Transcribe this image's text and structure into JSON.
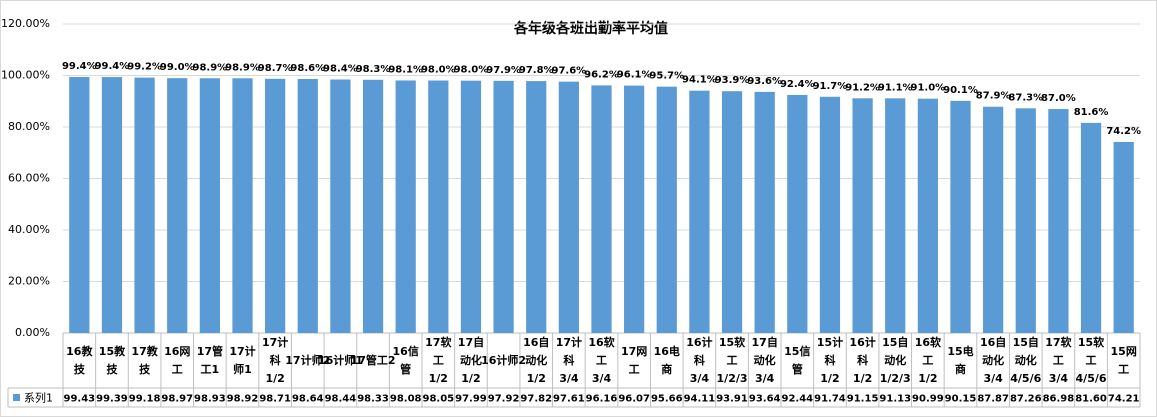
{
  "chart_data": {
    "type": "bar",
    "title": "各年级各班出勤率平均值",
    "categories": [
      [
        "16教",
        "技"
      ],
      [
        "15教",
        "技"
      ],
      [
        "17教",
        "技"
      ],
      [
        "16网",
        "工"
      ],
      [
        "17管",
        "工1"
      ],
      [
        "17计",
        "师1"
      ],
      [
        "17计",
        "科",
        "1/2"
      ],
      [
        "17计师2"
      ],
      [
        "16计师1"
      ],
      [
        "17管工2"
      ],
      [
        "16信",
        "管"
      ],
      [
        "17软",
        "工",
        "1/2"
      ],
      [
        "17自",
        "动化",
        "1/2"
      ],
      [
        "16计师2"
      ],
      [
        "16自",
        "动化",
        "1/2"
      ],
      [
        "17计",
        "科",
        "3/4"
      ],
      [
        "16软",
        "工",
        "3/4"
      ],
      [
        "17网",
        "工"
      ],
      [
        "16电",
        "商"
      ],
      [
        "16计",
        "科",
        "3/4"
      ],
      [
        "15软",
        "工",
        "1/2/3"
      ],
      [
        "17自",
        "动化",
        "3/4"
      ],
      [
        "15信",
        "管"
      ],
      [
        "15计",
        "科",
        "1/2"
      ],
      [
        "16计",
        "科",
        "1/2"
      ],
      [
        "15自",
        "动化",
        "1/2/3"
      ],
      [
        "16软",
        "工",
        "1/2"
      ],
      [
        "15电",
        "商"
      ],
      [
        "16自",
        "动化",
        "3/4"
      ],
      [
        "15自",
        "动化",
        "4/5/6"
      ],
      [
        "17软",
        "工",
        "3/4"
      ],
      [
        "15软",
        "工",
        "4/5/6"
      ],
      [
        "15网",
        "工"
      ]
    ],
    "series": [
      {
        "name": "系列1",
        "color": "#5b9bd5",
        "values": [
          99.43,
          99.39,
          99.18,
          98.97,
          98.93,
          98.92,
          98.71,
          98.64,
          98.44,
          98.33,
          98.08,
          98.05,
          97.99,
          97.92,
          97.82,
          97.61,
          96.16,
          96.07,
          95.66,
          94.11,
          93.91,
          93.64,
          92.44,
          91.74,
          91.15,
          91.13,
          90.99,
          90.15,
          87.87,
          87.26,
          86.98,
          81.6,
          74.21
        ],
        "value_labels": [
          "99.4%",
          "99.4%",
          "99.2%",
          "99.0%",
          "98.9%",
          "98.9%",
          "98.7%",
          "98.6%",
          "98.4%",
          "98.3%",
          "98.1%",
          "98.0%",
          "98.0%",
          "97.9%",
          "97.8%",
          "97.6%",
          "96.2%",
          "96.1%",
          "95.7%",
          "94.1%",
          "93.9%",
          "93.6%",
          "92.4%",
          "91.7%",
          "91.2%",
          "91.1%",
          "91.0%",
          "90.1%",
          "87.9%",
          "87.3%",
          "87.0%",
          "81.6%",
          "74.2%"
        ],
        "table_labels": [
          "99.43",
          "99.39",
          "99.18",
          "98.97",
          "98.93",
          "98.92",
          "98.71",
          "98.64",
          "98.44",
          "98.33",
          "98.08",
          "98.05",
          "97.99",
          "97.92",
          "97.82",
          "97.61",
          "96.16",
          "96.07",
          "95.66",
          "94.11",
          "93.91",
          "93.64",
          "92.44",
          "91.74",
          "91.15",
          "91.13",
          "90.99",
          "90.15",
          "87.87",
          "87.26",
          "86.98",
          "81.60",
          "74.21"
        ]
      }
    ],
    "ylim": [
      0,
      120
    ],
    "yticks": [
      {
        "value": 0,
        "label": "0.00%"
      },
      {
        "value": 20,
        "label": "20.00%"
      },
      {
        "value": 40,
        "label": "40.00%"
      },
      {
        "value": 60,
        "label": "60.00%"
      },
      {
        "value": 80,
        "label": "80.00%"
      },
      {
        "value": 100,
        "label": "100.00%"
      },
      {
        "value": 120,
        "label": "120.00%"
      }
    ],
    "grid": true
  }
}
